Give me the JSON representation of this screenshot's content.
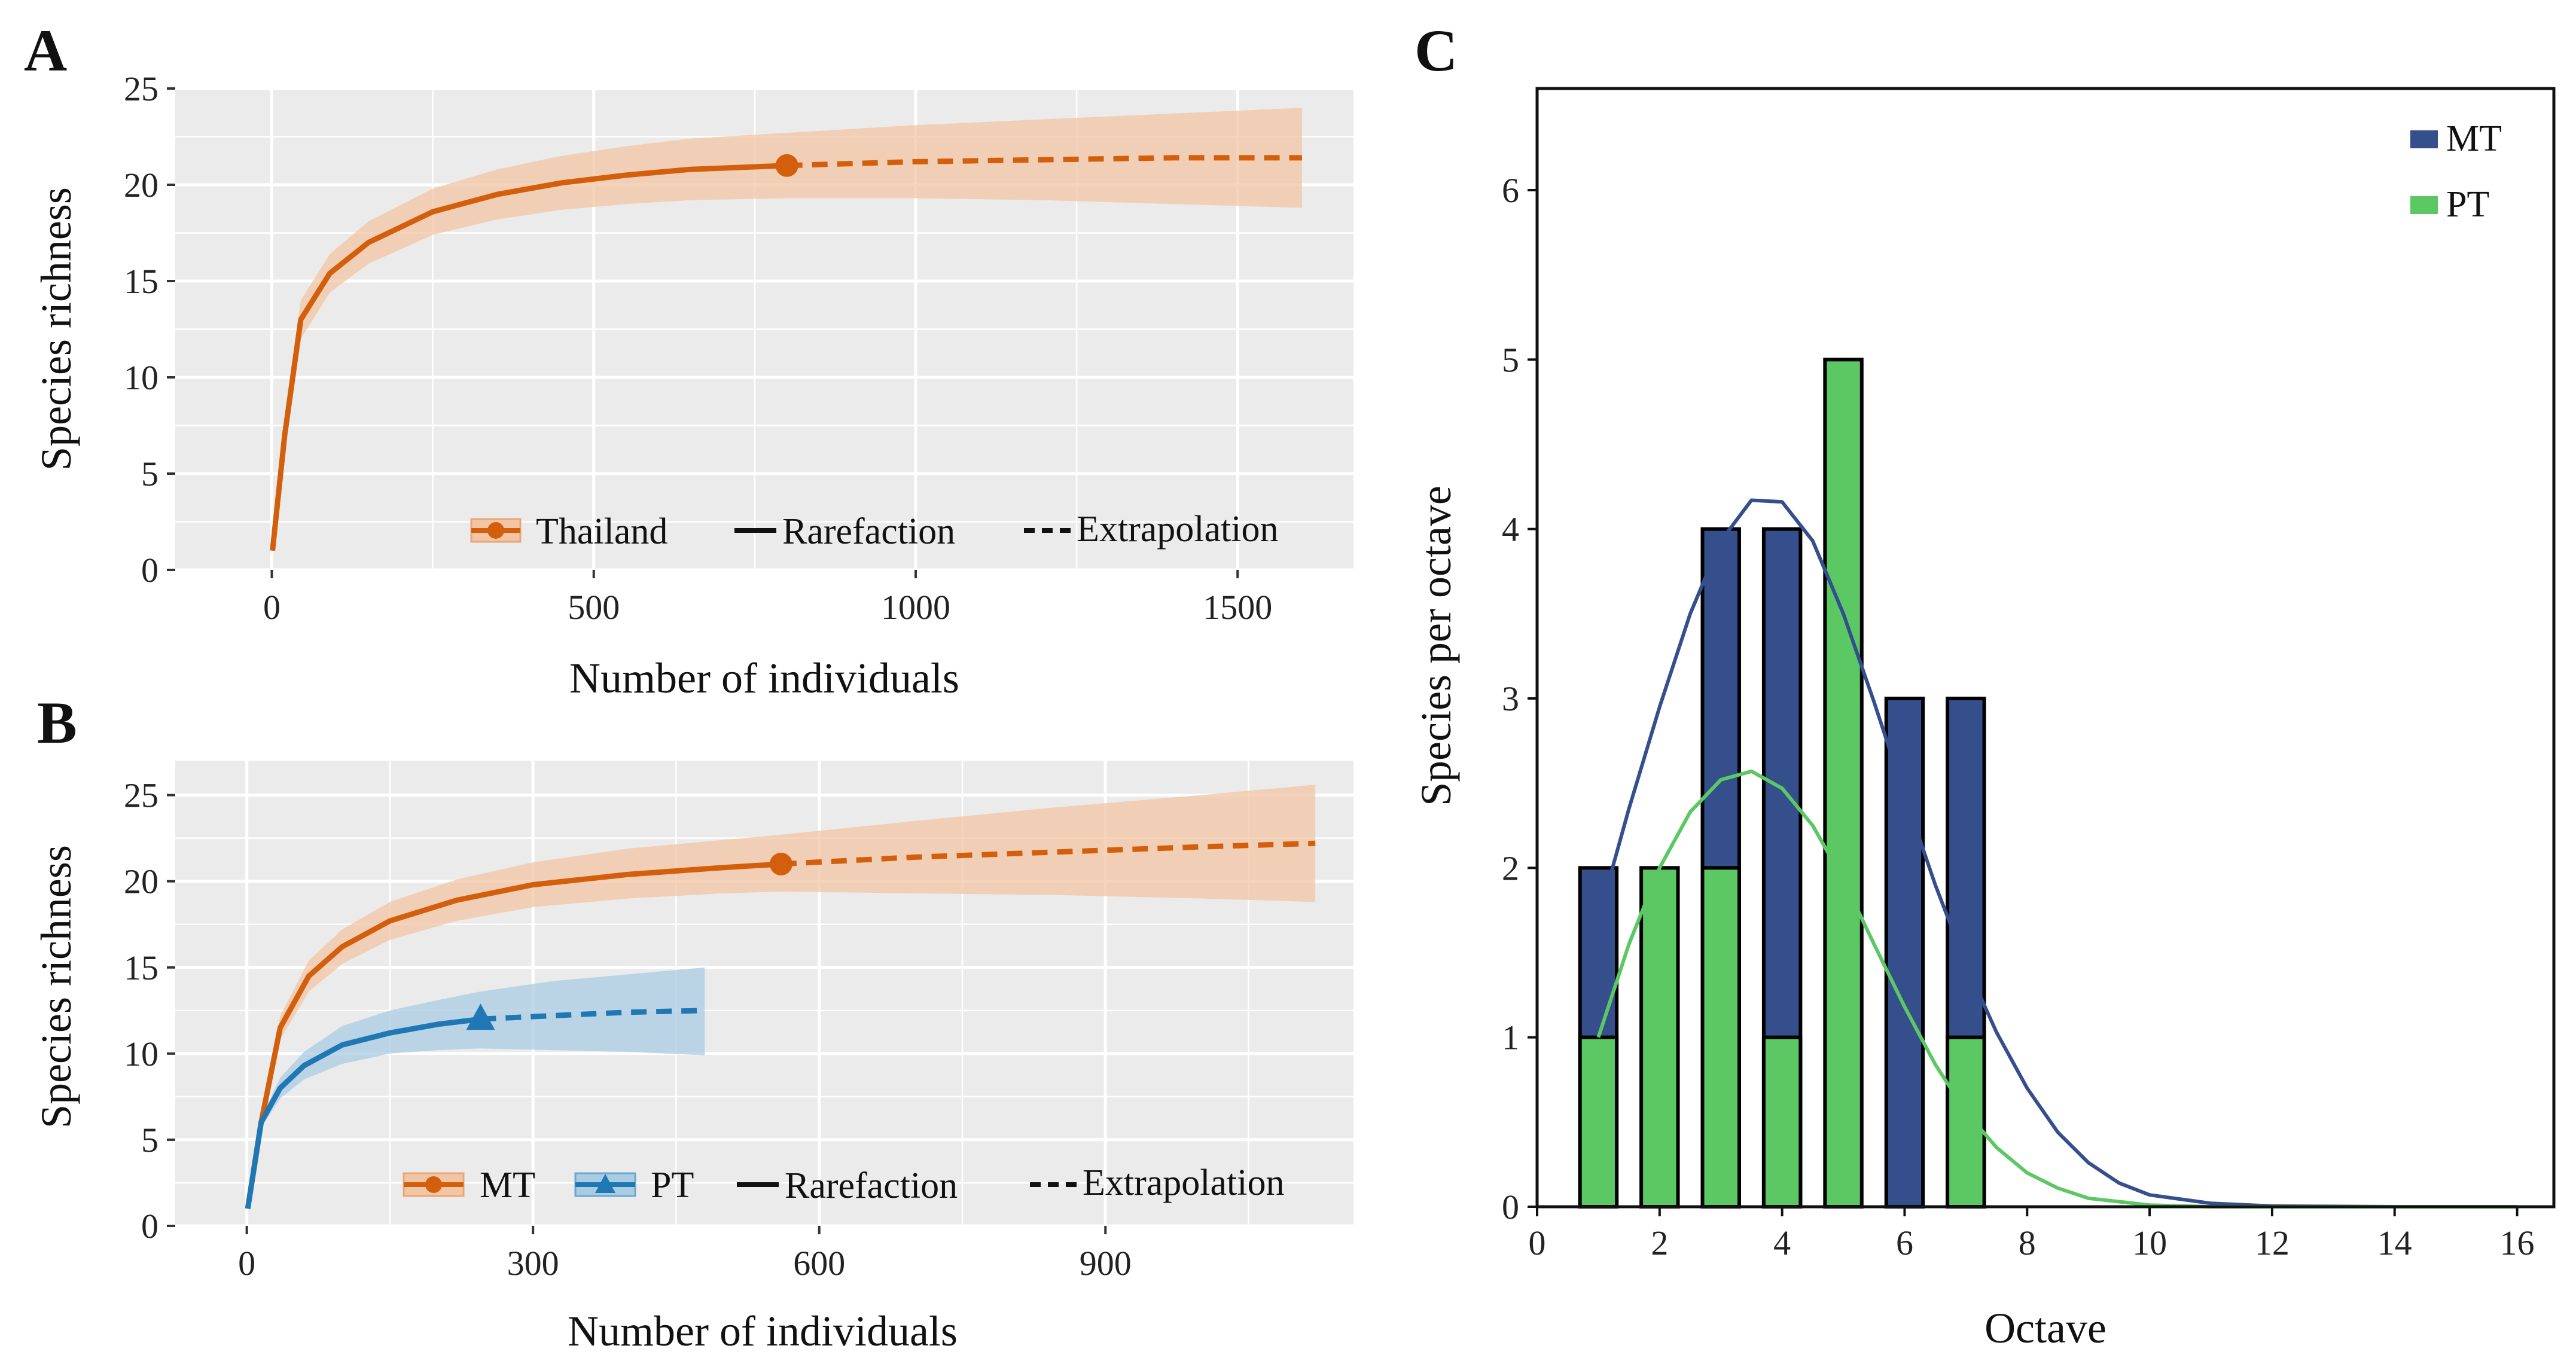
{
  "chart_data": [
    {
      "panel": "A",
      "type": "line",
      "xlabel": "Number of individuals",
      "ylabel": "Species richness",
      "xlim": [
        -150,
        1680
      ],
      "ylim": [
        0,
        25
      ],
      "xticks": [
        0,
        500,
        1000,
        1500
      ],
      "yticks": [
        0,
        5,
        10,
        15,
        20,
        25
      ],
      "grid": true,
      "legend_position": "bottom-right",
      "legend": [
        "Thailand",
        "Rarefaction",
        "Extrapolation"
      ],
      "series": [
        {
          "name": "Thailand",
          "color": "#D35F0D",
          "band_color": "#F2C6A4",
          "marker": "circle",
          "observed": [
            800,
            21
          ],
          "rarefaction": [
            [
              1,
              1
            ],
            [
              20,
              7
            ],
            [
              45,
              13
            ],
            [
              90,
              15.4
            ],
            [
              150,
              17
            ],
            [
              250,
              18.6
            ],
            [
              350,
              19.5
            ],
            [
              450,
              20.1
            ],
            [
              550,
              20.5
            ],
            [
              650,
              20.8
            ],
            [
              800,
              21
            ]
          ],
          "extrapolation": [
            [
              800,
              21
            ],
            [
              1000,
              21.2
            ],
            [
              1200,
              21.3
            ],
            [
              1400,
              21.4
            ],
            [
              1600,
              21.4
            ]
          ],
          "band_lower": [
            [
              1,
              1
            ],
            [
              20,
              6
            ],
            [
              45,
              12
            ],
            [
              90,
              14.4
            ],
            [
              150,
              15.9
            ],
            [
              250,
              17.4
            ],
            [
              350,
              18.2
            ],
            [
              450,
              18.7
            ],
            [
              550,
              19
            ],
            [
              650,
              19.2
            ],
            [
              800,
              19.3
            ],
            [
              1000,
              19.3
            ],
            [
              1200,
              19.2
            ],
            [
              1400,
              19
            ],
            [
              1600,
              18.8
            ]
          ],
          "band_upper": [
            [
              1,
              1
            ],
            [
              20,
              8
            ],
            [
              45,
              14
            ],
            [
              90,
              16.4
            ],
            [
              150,
              18.1
            ],
            [
              250,
              19.8
            ],
            [
              350,
              20.8
            ],
            [
              450,
              21.5
            ],
            [
              550,
              22
            ],
            [
              650,
              22.4
            ],
            [
              800,
              22.7
            ],
            [
              1000,
              23.1
            ],
            [
              1200,
              23.4
            ],
            [
              1400,
              23.7
            ],
            [
              1600,
              24
            ]
          ]
        }
      ]
    },
    {
      "panel": "B",
      "type": "line",
      "xlabel": "Number of individuals",
      "ylabel": "Species richness",
      "xlim": [
        -75,
        1160
      ],
      "ylim": [
        0,
        27
      ],
      "xticks": [
        0,
        300,
        600,
        900
      ],
      "yticks": [
        0,
        5,
        10,
        15,
        20,
        25
      ],
      "grid": true,
      "legend_position": "bottom-right",
      "legend": [
        "MT",
        "PT",
        "Rarefaction",
        "Extrapolation"
      ],
      "series": [
        {
          "name": "MT",
          "color": "#D35F0D",
          "band_color": "#F2C6A4",
          "marker": "circle",
          "observed": [
            560,
            21
          ],
          "rarefaction": [
            [
              1,
              1
            ],
            [
              15,
              6
            ],
            [
              35,
              11.5
            ],
            [
              65,
              14.5
            ],
            [
              100,
              16.2
            ],
            [
              150,
              17.7
            ],
            [
              220,
              18.9
            ],
            [
              300,
              19.8
            ],
            [
              400,
              20.4
            ],
            [
              500,
              20.8
            ],
            [
              560,
              21
            ]
          ],
          "extrapolation": [
            [
              560,
              21
            ],
            [
              700,
              21.4
            ],
            [
              850,
              21.7
            ],
            [
              1000,
              22
            ],
            [
              1120,
              22.2
            ]
          ],
          "band_lower": [
            [
              1,
              1
            ],
            [
              15,
              5.6
            ],
            [
              35,
              10.8
            ],
            [
              65,
              13.6
            ],
            [
              100,
              15.2
            ],
            [
              150,
              16.6
            ],
            [
              220,
              17.7
            ],
            [
              300,
              18.5
            ],
            [
              400,
              19
            ],
            [
              500,
              19.3
            ],
            [
              560,
              19.4
            ],
            [
              700,
              19.3
            ],
            [
              850,
              19.2
            ],
            [
              1000,
              19
            ],
            [
              1120,
              18.8
            ]
          ],
          "band_upper": [
            [
              1,
              1
            ],
            [
              15,
              6.4
            ],
            [
              35,
              12.2
            ],
            [
              65,
              15.4
            ],
            [
              100,
              17.2
            ],
            [
              150,
              18.8
            ],
            [
              220,
              20.1
            ],
            [
              300,
              21.1
            ],
            [
              400,
              21.9
            ],
            [
              500,
              22.4
            ],
            [
              560,
              22.7
            ],
            [
              700,
              23.5
            ],
            [
              850,
              24.3
            ],
            [
              1000,
              25
            ],
            [
              1120,
              25.6
            ]
          ]
        },
        {
          "name": "PT",
          "color": "#1F78B4",
          "band_color": "#A9CCE3",
          "marker": "triangle",
          "observed": [
            245,
            12
          ],
          "rarefaction": [
            [
              1,
              1
            ],
            [
              15,
              6
            ],
            [
              35,
              8
            ],
            [
              60,
              9.3
            ],
            [
              100,
              10.5
            ],
            [
              150,
              11.2
            ],
            [
              200,
              11.7
            ],
            [
              245,
              12
            ]
          ],
          "extrapolation": [
            [
              245,
              12
            ],
            [
              320,
              12.2
            ],
            [
              400,
              12.4
            ],
            [
              480,
              12.5
            ]
          ],
          "band_lower": [
            [
              1,
              1
            ],
            [
              15,
              5.7
            ],
            [
              35,
              7.4
            ],
            [
              60,
              8.5
            ],
            [
              100,
              9.4
            ],
            [
              150,
              10
            ],
            [
              200,
              10.2
            ],
            [
              245,
              10.3
            ],
            [
              320,
              10.2
            ],
            [
              400,
              10.1
            ],
            [
              480,
              9.9
            ]
          ],
          "band_upper": [
            [
              1,
              1
            ],
            [
              15,
              6.3
            ],
            [
              35,
              8.6
            ],
            [
              60,
              10.1
            ],
            [
              100,
              11.6
            ],
            [
              150,
              12.5
            ],
            [
              200,
              13.1
            ],
            [
              245,
              13.6
            ],
            [
              320,
              14.2
            ],
            [
              400,
              14.6
            ],
            [
              480,
              15
            ]
          ]
        }
      ]
    },
    {
      "panel": "C",
      "type": "bar",
      "xlabel": "Octave",
      "ylabel": "Species per octave",
      "xlim": [
        0,
        16.6
      ],
      "ylim": [
        0,
        6.6
      ],
      "xticks": [
        0,
        2,
        4,
        6,
        8,
        10,
        12,
        14,
        16
      ],
      "yticks": [
        0,
        1,
        2,
        3,
        4,
        5,
        6
      ],
      "grid": false,
      "legend_position": "top-right",
      "legend": [
        "MT",
        "PT"
      ],
      "series": [
        {
          "name": "MT",
          "color": "#354E8C",
          "bars": [
            [
              1,
              2
            ],
            [
              3,
              4
            ],
            [
              4,
              4
            ],
            [
              6,
              3
            ],
            [
              7,
              3
            ]
          ],
          "fit_curve": [
            [
              1,
              1.7
            ],
            [
              1.5,
              2.35
            ],
            [
              2,
              2.95
            ],
            [
              2.5,
              3.5
            ],
            [
              3,
              3.93
            ],
            [
              3.5,
              4.17
            ],
            [
              4,
              4.16
            ],
            [
              4.5,
              3.93
            ],
            [
              5,
              3.5
            ],
            [
              5.5,
              2.98
            ],
            [
              6,
              2.43
            ],
            [
              6.5,
              1.9
            ],
            [
              7,
              1.43
            ],
            [
              7.5,
              1.03
            ],
            [
              8,
              0.7
            ],
            [
              8.5,
              0.44
            ],
            [
              9,
              0.26
            ],
            [
              9.5,
              0.14
            ],
            [
              10,
              0.07
            ],
            [
              11,
              0.02
            ],
            [
              12,
              0.004
            ],
            [
              14,
              0
            ],
            [
              16,
              0
            ]
          ]
        },
        {
          "name": "PT",
          "color": "#5BC864",
          "bars": [
            [
              1,
              1
            ],
            [
              2,
              2
            ],
            [
              3,
              2
            ],
            [
              4,
              1
            ],
            [
              5,
              5
            ],
            [
              7,
              1
            ]
          ],
          "fit_curve": [
            [
              1,
              1
            ],
            [
              1.5,
              1.55
            ],
            [
              2,
              2
            ],
            [
              2.5,
              2.33
            ],
            [
              3,
              2.52
            ],
            [
              3.5,
              2.57
            ],
            [
              4,
              2.47
            ],
            [
              4.5,
              2.25
            ],
            [
              5,
              1.93
            ],
            [
              5.5,
              1.55
            ],
            [
              6,
              1.18
            ],
            [
              6.5,
              0.84
            ],
            [
              7,
              0.56
            ],
            [
              7.5,
              0.35
            ],
            [
              8,
              0.2
            ],
            [
              8.5,
              0.11
            ],
            [
              9,
              0.05
            ],
            [
              10,
              0.01
            ],
            [
              11,
              0
            ],
            [
              16,
              0
            ]
          ]
        }
      ]
    }
  ]
}
